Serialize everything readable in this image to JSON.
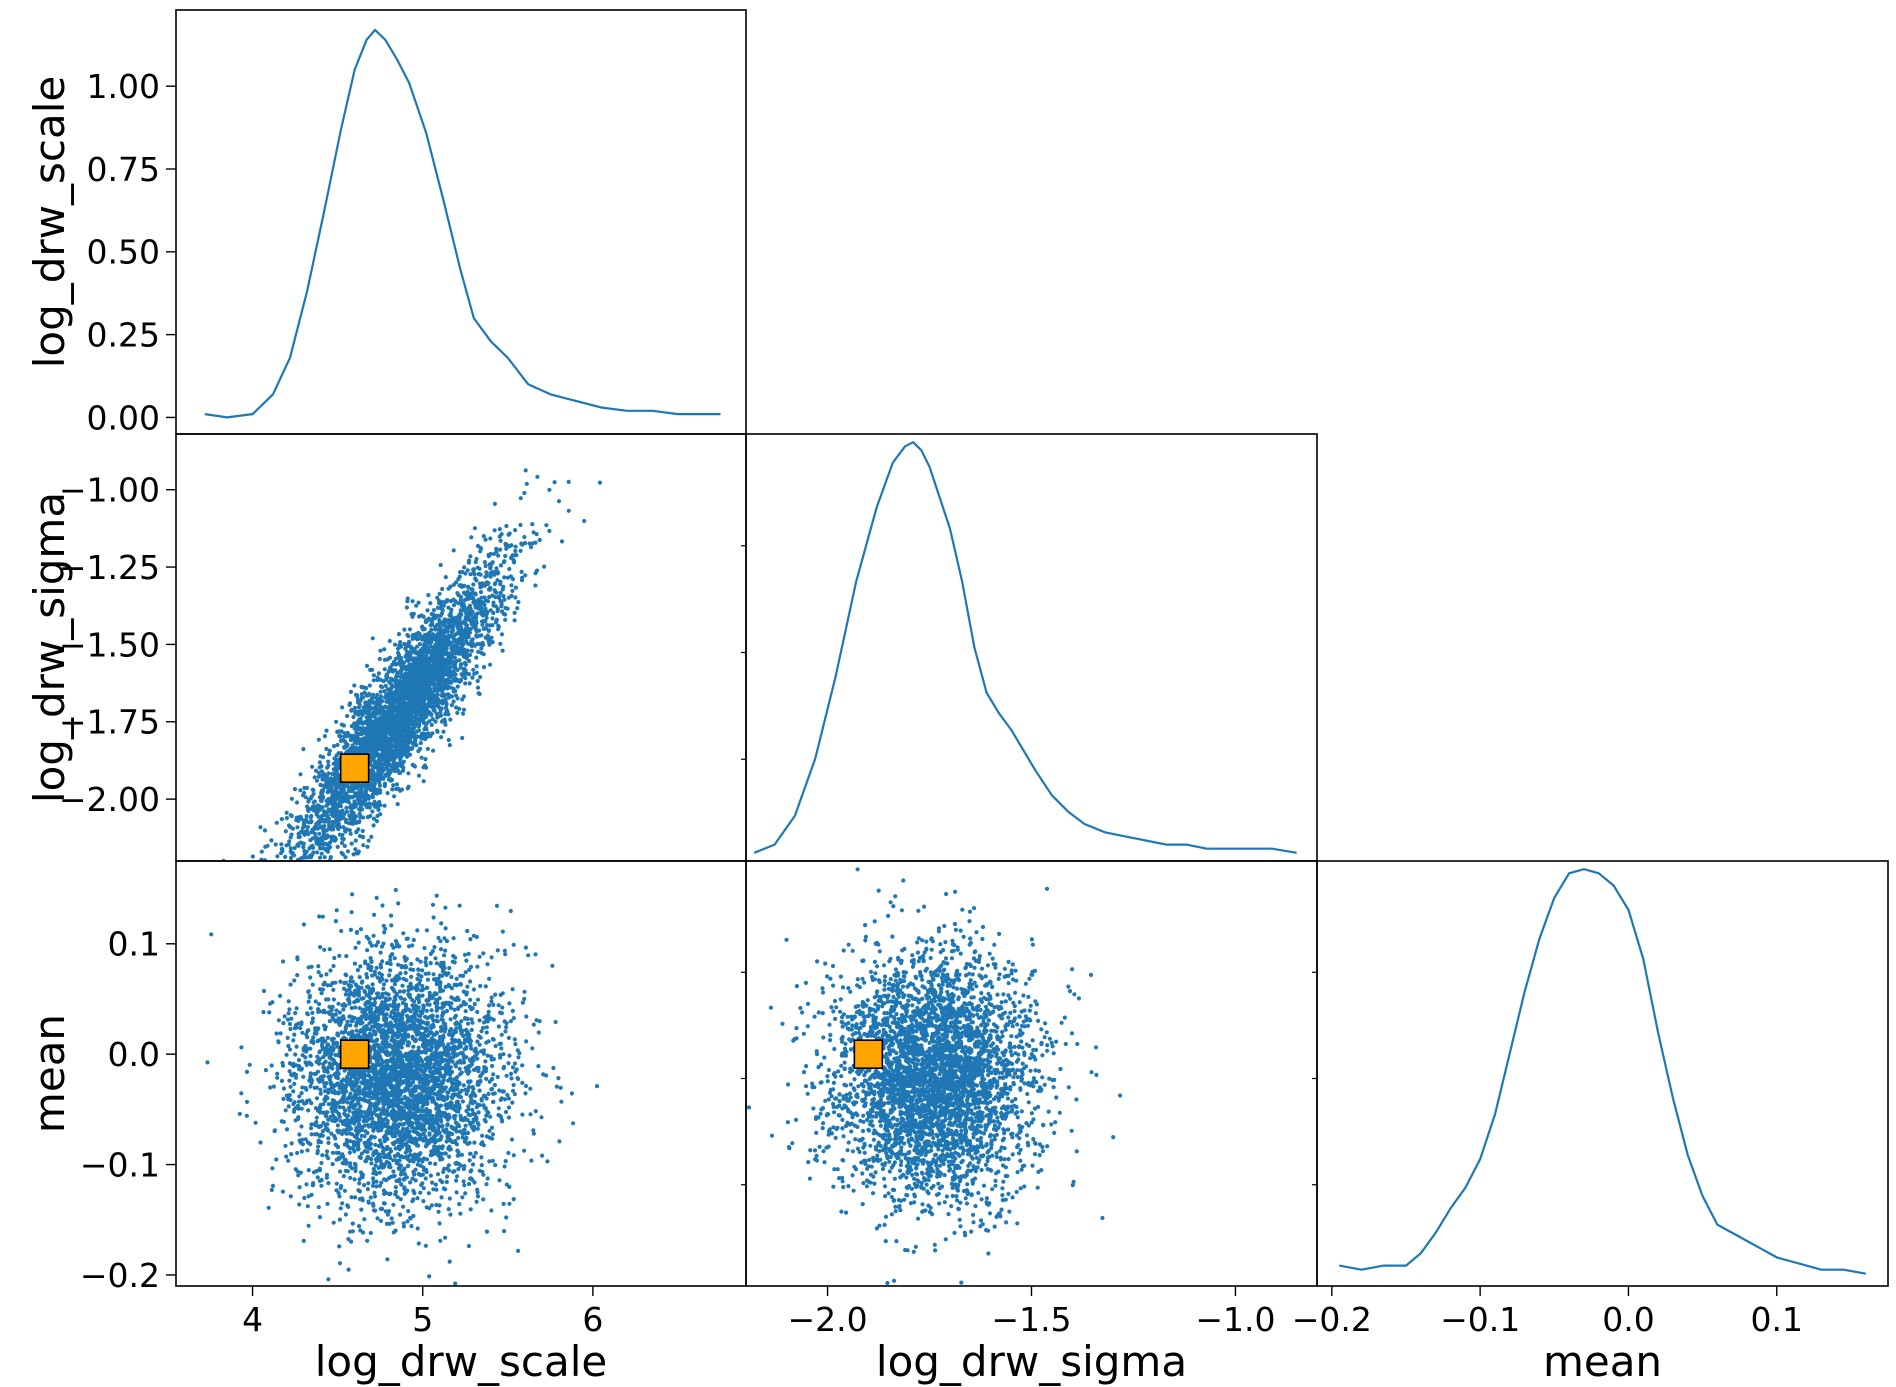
{
  "figure": {
    "type": "corner-plot"
  },
  "chart_data": [
    {
      "panel": "log_drw_scale-kde",
      "type": "line",
      "ylabel": "log_drw_scale",
      "xlim": [
        3.55,
        6.9
      ],
      "ylim": [
        -0.05,
        1.23
      ],
      "yticks": [
        0.0,
        0.25,
        0.5,
        0.75,
        1.0
      ],
      "ytick_labels": [
        "0.00",
        "0.25",
        "0.50",
        "0.75",
        "1.00"
      ],
      "x": [
        3.72,
        3.85,
        4.0,
        4.12,
        4.22,
        4.32,
        4.42,
        4.52,
        4.6,
        4.67,
        4.72,
        4.78,
        4.85,
        4.92,
        5.02,
        5.12,
        5.22,
        5.3,
        5.4,
        5.5,
        5.62,
        5.75,
        5.9,
        6.05,
        6.2,
        6.35,
        6.5,
        6.65,
        6.75
      ],
      "y": [
        0.01,
        0.0,
        0.01,
        0.07,
        0.18,
        0.38,
        0.62,
        0.87,
        1.05,
        1.14,
        1.17,
        1.14,
        1.08,
        1.01,
        0.86,
        0.66,
        0.45,
        0.3,
        0.23,
        0.18,
        0.1,
        0.07,
        0.05,
        0.03,
        0.02,
        0.02,
        0.01,
        0.01,
        0.01
      ]
    },
    {
      "panel": "log_drw_sigma-vs-log_drw_scale",
      "type": "scatter",
      "ylabel": "log_drw_sigma",
      "xlim": [
        3.55,
        6.9
      ],
      "ylim": [
        -2.2,
        -0.82
      ],
      "yticks": [
        -2.0,
        -1.75,
        -1.5,
        -1.25,
        -1.0
      ],
      "ytick_labels": [
        "−2.00",
        "−1.75",
        "−1.50",
        "−1.25",
        "−1.00"
      ],
      "n_points": 4000,
      "x_center": 4.85,
      "x_spread": 0.3,
      "y_slope": 0.7,
      "y_intercept": -5.13,
      "y_spread": 0.1,
      "marker": {
        "x": 4.6,
        "y": -1.9
      }
    },
    {
      "panel": "log_drw_sigma-kde",
      "type": "line",
      "xlim": [
        -2.2,
        -0.8
      ],
      "ylim": [
        -0.02,
        1.02
      ],
      "x": [
        -2.18,
        -2.13,
        -2.08,
        -2.03,
        -1.98,
        -1.93,
        -1.88,
        -1.84,
        -1.81,
        -1.79,
        -1.77,
        -1.75,
        -1.73,
        -1.7,
        -1.67,
        -1.64,
        -1.61,
        -1.58,
        -1.55,
        -1.52,
        -1.49,
        -1.45,
        -1.41,
        -1.37,
        -1.32,
        -1.27,
        -1.22,
        -1.17,
        -1.12,
        -1.07,
        -1.02,
        -0.97,
        -0.91,
        -0.85
      ],
      "y": [
        0.0,
        0.02,
        0.09,
        0.23,
        0.43,
        0.66,
        0.84,
        0.95,
        0.99,
        1.0,
        0.98,
        0.94,
        0.88,
        0.79,
        0.66,
        0.5,
        0.39,
        0.34,
        0.3,
        0.25,
        0.2,
        0.14,
        0.1,
        0.07,
        0.05,
        0.04,
        0.03,
        0.02,
        0.02,
        0.01,
        0.01,
        0.01,
        0.01,
        0.0
      ]
    },
    {
      "panel": "mean-vs-log_drw_scale",
      "type": "scatter",
      "ylabel": "mean",
      "xlabel": "log_drw_scale",
      "xlim": [
        3.55,
        6.9
      ],
      "ylim": [
        -0.21,
        0.175
      ],
      "xticks": [
        4,
        5,
        6
      ],
      "xtick_labels": [
        "4",
        "5",
        "6"
      ],
      "yticks": [
        -0.2,
        -0.1,
        0.0,
        0.1
      ],
      "ytick_labels": [
        "−0.2",
        "−0.1",
        "0.0",
        "0.1"
      ],
      "n_points": 4000,
      "x_center": 4.85,
      "x_spread": 0.3,
      "y_center": -0.02,
      "y_spread": 0.055,
      "marker": {
        "x": 4.6,
        "y": 0.0
      }
    },
    {
      "panel": "mean-vs-log_drw_sigma",
      "type": "scatter",
      "xlabel": "log_drw_sigma",
      "xlim": [
        -2.2,
        -0.8
      ],
      "ylim": [
        -0.21,
        0.175
      ],
      "xticks": [
        -2.0,
        -1.5,
        -1.0
      ],
      "xtick_labels": [
        "−2.0",
        "−1.5",
        "−1.0"
      ],
      "n_points": 4000,
      "x_center": -1.74,
      "x_spread": 0.12,
      "y_center": -0.02,
      "y_spread": 0.055,
      "marker": {
        "x": -1.9,
        "y": 0.0
      }
    },
    {
      "panel": "mean-kde",
      "type": "line",
      "xlabel": "mean",
      "xlim": [
        -0.21,
        0.175
      ],
      "ylim": [
        -0.02,
        1.02
      ],
      "xticks": [
        -0.2,
        -0.1,
        0.0,
        0.1
      ],
      "xtick_labels": [
        "−0.2",
        "−0.1",
        "0.0",
        "0.1"
      ],
      "x": [
        -0.195,
        -0.18,
        -0.165,
        -0.15,
        -0.14,
        -0.13,
        -0.12,
        -0.11,
        -0.1,
        -0.09,
        -0.08,
        -0.07,
        -0.06,
        -0.05,
        -0.04,
        -0.03,
        -0.02,
        -0.01,
        0.0,
        0.01,
        0.02,
        0.03,
        0.04,
        0.05,
        0.06,
        0.07,
        0.08,
        0.09,
        0.1,
        0.11,
        0.12,
        0.13,
        0.145,
        0.16
      ],
      "y": [
        0.03,
        0.02,
        0.03,
        0.03,
        0.06,
        0.11,
        0.17,
        0.22,
        0.29,
        0.4,
        0.55,
        0.7,
        0.83,
        0.93,
        0.99,
        1.0,
        0.99,
        0.96,
        0.9,
        0.78,
        0.6,
        0.44,
        0.3,
        0.2,
        0.13,
        0.11,
        0.09,
        0.07,
        0.05,
        0.04,
        0.03,
        0.02,
        0.02,
        0.01
      ]
    }
  ],
  "colors": {
    "series": "#1f77b4",
    "marker": "#ffa500",
    "marker_edge": "#000000",
    "axes": "#000000"
  }
}
